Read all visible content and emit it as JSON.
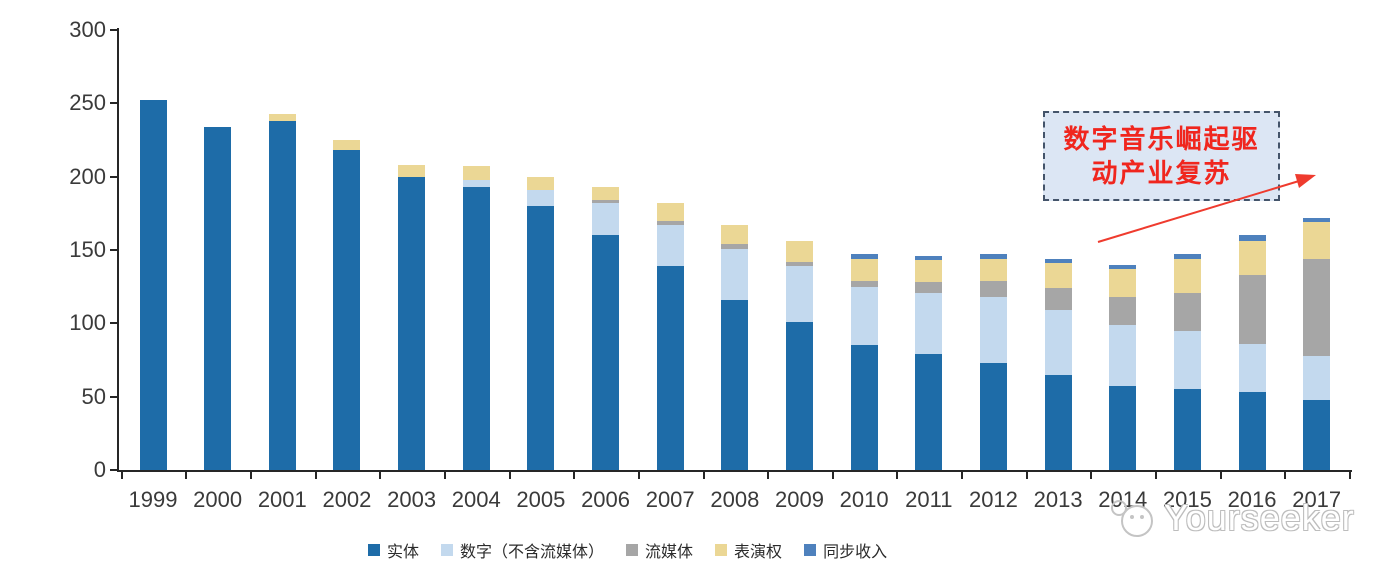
{
  "chart_data": {
    "type": "bar",
    "stacked": true,
    "title": "",
    "xlabel": "",
    "ylabel": "",
    "ylim": [
      0,
      300
    ],
    "yticks": [
      0,
      50,
      100,
      150,
      200,
      250,
      300
    ],
    "grid": false,
    "legend_position": "bottom",
    "categories": [
      "1999",
      "2000",
      "2001",
      "2002",
      "2003",
      "2004",
      "2005",
      "2006",
      "2007",
      "2008",
      "2009",
      "2010",
      "2011",
      "2012",
      "2013",
      "2014",
      "2015",
      "2016",
      "2017"
    ],
    "series": [
      {
        "name": "实体",
        "color": "#1E6CA8",
        "values": [
          252,
          234,
          238,
          218,
          200,
          193,
          180,
          160,
          139,
          116,
          101,
          85,
          79,
          73,
          65,
          57,
          55,
          53,
          48
        ]
      },
      {
        "name": "数字（不含流媒体）",
        "color": "#C3D9EE",
        "values": [
          0,
          0,
          0,
          0,
          0,
          5,
          11,
          22,
          28,
          35,
          38,
          40,
          42,
          45,
          44,
          42,
          40,
          33,
          30
        ]
      },
      {
        "name": "流媒体",
        "color": "#A6A6A6",
        "values": [
          0,
          0,
          0,
          0,
          0,
          0,
          0,
          2,
          3,
          3,
          3,
          4,
          7,
          11,
          15,
          19,
          26,
          47,
          66
        ]
      },
      {
        "name": "表演权",
        "color": "#EBD795",
        "values": [
          0,
          0,
          5,
          7,
          8,
          9,
          9,
          9,
          12,
          13,
          14,
          15,
          15,
          15,
          17,
          19,
          23,
          23,
          25
        ]
      },
      {
        "name": "同步收入",
        "color": "#4E81BD",
        "values": [
          0,
          0,
          0,
          0,
          0,
          0,
          0,
          0,
          0,
          0,
          0,
          3,
          3,
          3,
          3,
          3,
          3,
          4,
          3
        ]
      }
    ]
  },
  "annotation": {
    "line1": "数字音乐崛起驱",
    "line2": "动产业复苏",
    "text_color": "#F0261E",
    "box_fill": "#DCE6F4",
    "box_border": "#44546A",
    "arrow_color": "#EF3B2E"
  },
  "watermark": {
    "text": "Yourseeker"
  }
}
